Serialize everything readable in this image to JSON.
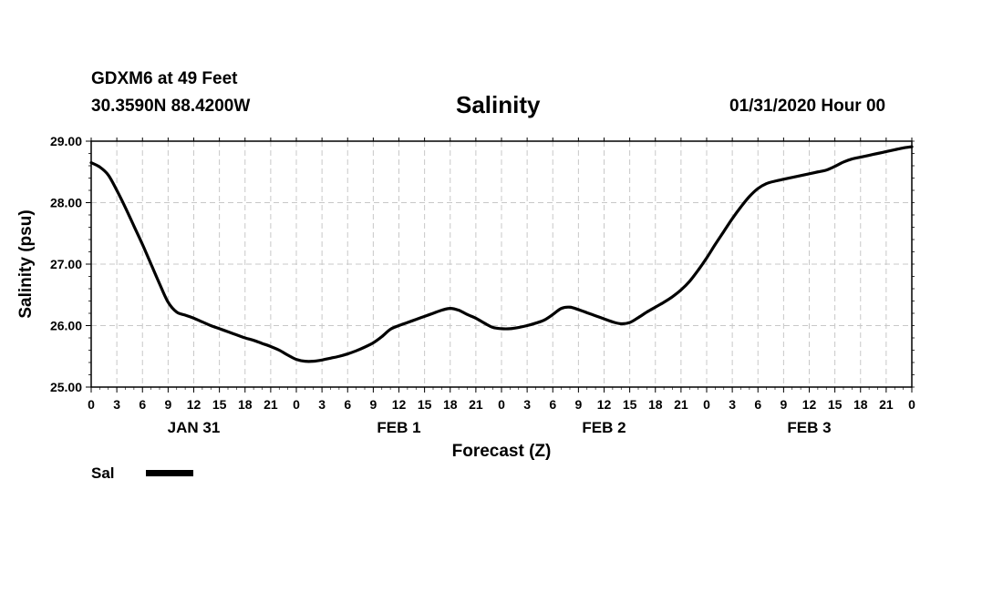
{
  "header": {
    "station": "GDXM6 at 49 Feet",
    "coords": "30.3590N 88.4200W",
    "title": "Salinity",
    "datetime": "01/31/2020 Hour 00"
  },
  "chart_data": {
    "type": "line",
    "title": "Salinity",
    "xlabel": "Forecast (Z)",
    "ylabel": "Salinity (psu)",
    "ylim": [
      25,
      29
    ],
    "xlim": [
      0,
      96
    ],
    "grid": true,
    "y_ticks": [
      "25.00",
      "26.00",
      "27.00",
      "28.00",
      "29.00"
    ],
    "x_tick_labels": [
      "0",
      "3",
      "6",
      "9",
      "12",
      "15",
      "18",
      "21",
      "0",
      "3",
      "6",
      "9",
      "12",
      "15",
      "18",
      "21",
      "0",
      "3",
      "6",
      "9",
      "12",
      "15",
      "18",
      "21",
      "0",
      "3",
      "6",
      "9",
      "12",
      "15",
      "18",
      "21",
      "0"
    ],
    "day_labels": [
      {
        "label": "JAN 31",
        "hour": 12
      },
      {
        "label": "FEB 1",
        "hour": 36
      },
      {
        "label": "FEB 2",
        "hour": 60
      },
      {
        "label": "FEB 3",
        "hour": 84
      }
    ],
    "legend": "bottom-left",
    "series": [
      {
        "name": "Sal",
        "color": "#000000",
        "x": [
          0,
          1,
          2,
          3,
          4,
          5,
          6,
          7,
          8,
          9,
          10,
          11,
          12,
          13,
          14,
          15,
          16,
          17,
          18,
          19,
          20,
          21,
          22,
          23,
          24,
          25,
          26,
          27,
          28,
          29,
          30,
          31,
          32,
          33,
          34,
          35,
          36,
          37,
          38,
          39,
          40,
          41,
          42,
          43,
          44,
          45,
          46,
          47,
          48,
          49,
          50,
          51,
          52,
          53,
          54,
          55,
          56,
          57,
          58,
          59,
          60,
          61,
          62,
          63,
          64,
          65,
          66,
          67,
          68,
          69,
          70,
          71,
          72,
          73,
          74,
          75,
          76,
          77,
          78,
          79,
          80,
          81,
          82,
          83,
          84,
          85,
          86,
          87,
          88,
          89,
          90,
          91,
          92,
          93,
          94,
          95,
          96
        ],
        "values": [
          28.65,
          28.58,
          28.45,
          28.2,
          27.92,
          27.62,
          27.32,
          27.0,
          26.68,
          26.38,
          26.22,
          26.17,
          26.12,
          26.06,
          26.0,
          25.95,
          25.9,
          25.85,
          25.8,
          25.76,
          25.71,
          25.66,
          25.6,
          25.52,
          25.45,
          25.42,
          25.42,
          25.44,
          25.47,
          25.5,
          25.54,
          25.59,
          25.65,
          25.72,
          25.82,
          25.94,
          26.0,
          26.05,
          26.1,
          26.15,
          26.2,
          26.25,
          26.28,
          26.25,
          26.18,
          26.12,
          26.04,
          25.97,
          25.95,
          25.95,
          25.97,
          26.0,
          26.04,
          26.09,
          26.18,
          26.28,
          26.3,
          26.26,
          26.21,
          26.16,
          26.11,
          26.06,
          26.03,
          26.05,
          26.13,
          26.22,
          26.3,
          26.38,
          26.47,
          26.58,
          26.72,
          26.9,
          27.1,
          27.32,
          27.53,
          27.74,
          27.93,
          28.1,
          28.23,
          28.31,
          28.35,
          28.38,
          28.41,
          28.44,
          28.47,
          28.5,
          28.53,
          28.59,
          28.66,
          28.71,
          28.74,
          28.77,
          28.8,
          28.83,
          28.86,
          28.89,
          28.91
        ]
      }
    ]
  }
}
